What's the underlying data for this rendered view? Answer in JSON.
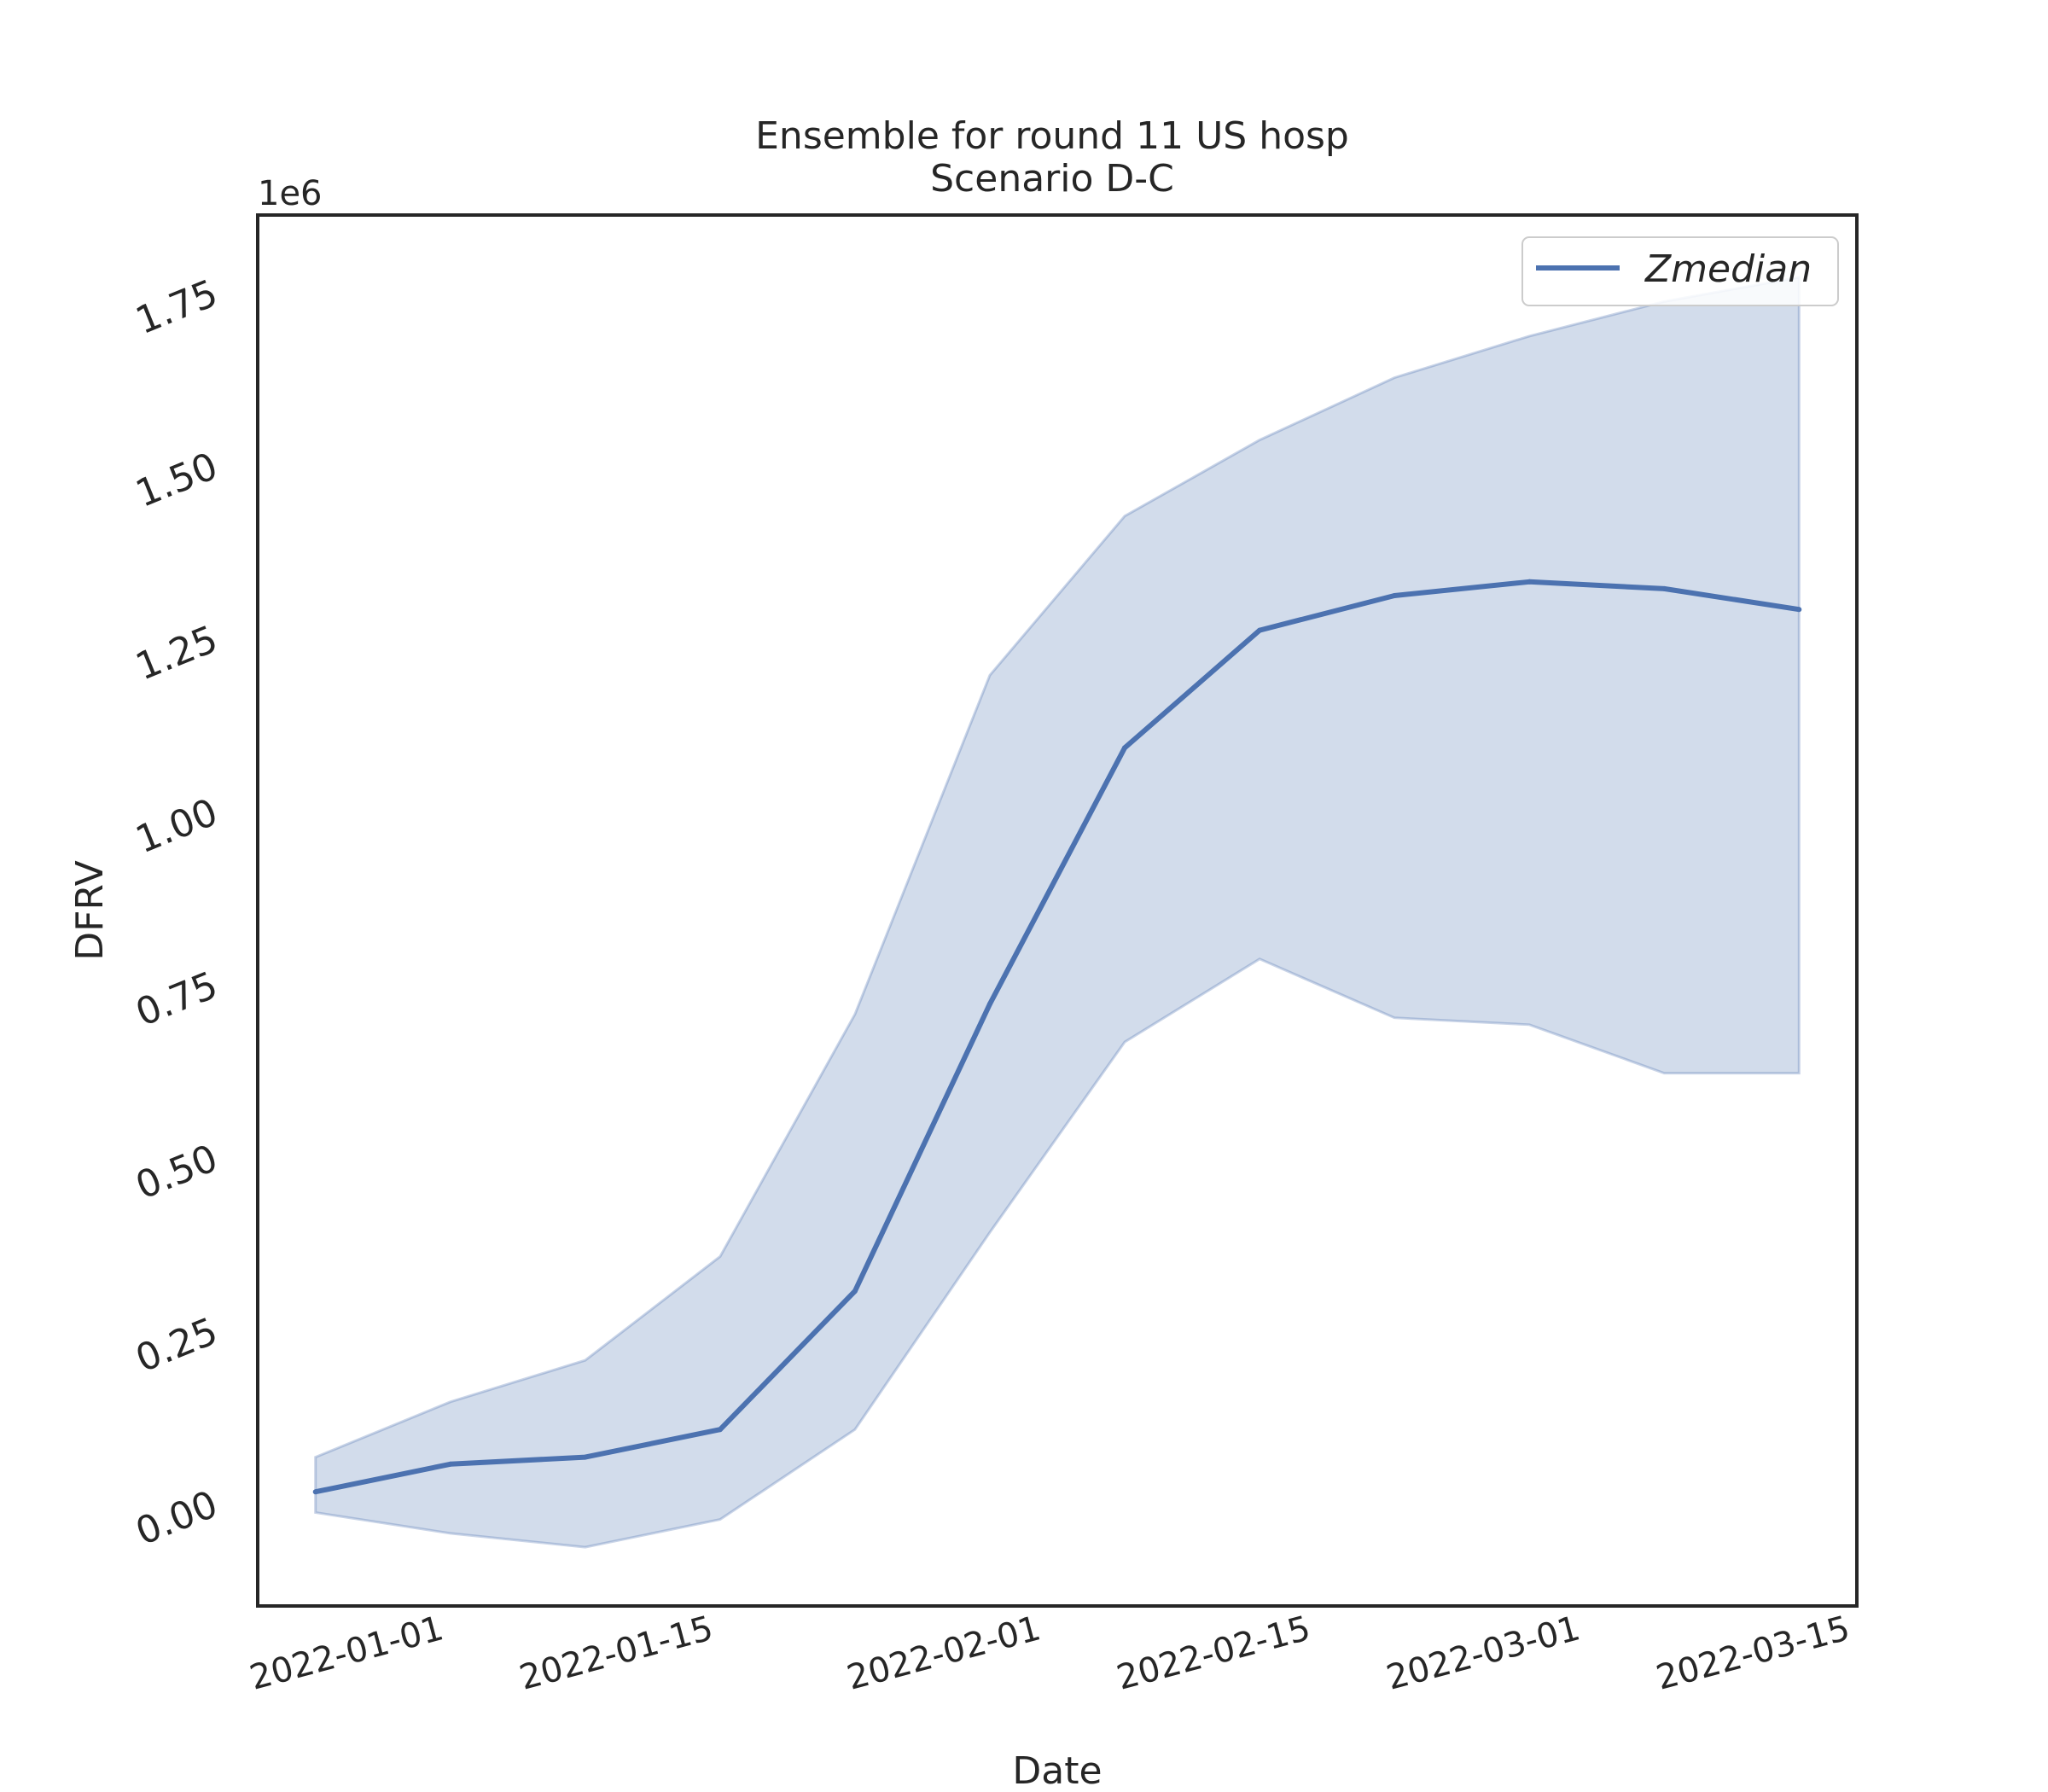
{
  "chart_data": {
    "type": "line",
    "title_line1": "Ensemble for round 11 US hosp",
    "title_line2": "Scenario D-C",
    "xlabel": "Date",
    "ylabel": "DFRV",
    "y_offset_label": "1e6",
    "y_scale": 1000000,
    "x_ticks": [
      "2022-01-01",
      "2022-01-15",
      "2022-02-01",
      "2022-02-15",
      "2022-03-01",
      "2022-03-15"
    ],
    "y_ticks": [
      "0.00",
      "0.25",
      "0.50",
      "0.75",
      "1.00",
      "1.25",
      "1.50",
      "1.75"
    ],
    "y_tick_values": [
      0,
      250000,
      500000,
      750000,
      1000000,
      1250000,
      1500000,
      1750000
    ],
    "xlim": [
      "2021-12-22",
      "2022-03-15"
    ],
    "ylim": [
      -150000,
      1860000
    ],
    "grid": false,
    "legend": "top-right",
    "series": [
      {
        "name": "Zmedian",
        "color": "#4c72b0",
        "x": [
          "2021-12-25",
          "2022-01-01",
          "2022-01-08",
          "2022-01-15",
          "2022-01-22",
          "2022-01-29",
          "2022-02-05",
          "2022-02-12",
          "2022-02-19",
          "2022-02-26",
          "2022-03-05",
          "2022-03-12"
        ],
        "values": [
          15000,
          55000,
          65000,
          105000,
          305000,
          720000,
          1090000,
          1260000,
          1310000,
          1330000,
          1320000,
          1290000
        ],
        "lower": [
          -15000,
          -45000,
          -65000,
          -25000,
          105000,
          390000,
          665000,
          785000,
          700000,
          690000,
          620000,
          620000
        ],
        "upper": [
          65000,
          145000,
          205000,
          355000,
          705000,
          1195000,
          1425000,
          1535000,
          1625000,
          1685000,
          1735000,
          1770000
        ]
      }
    ]
  }
}
